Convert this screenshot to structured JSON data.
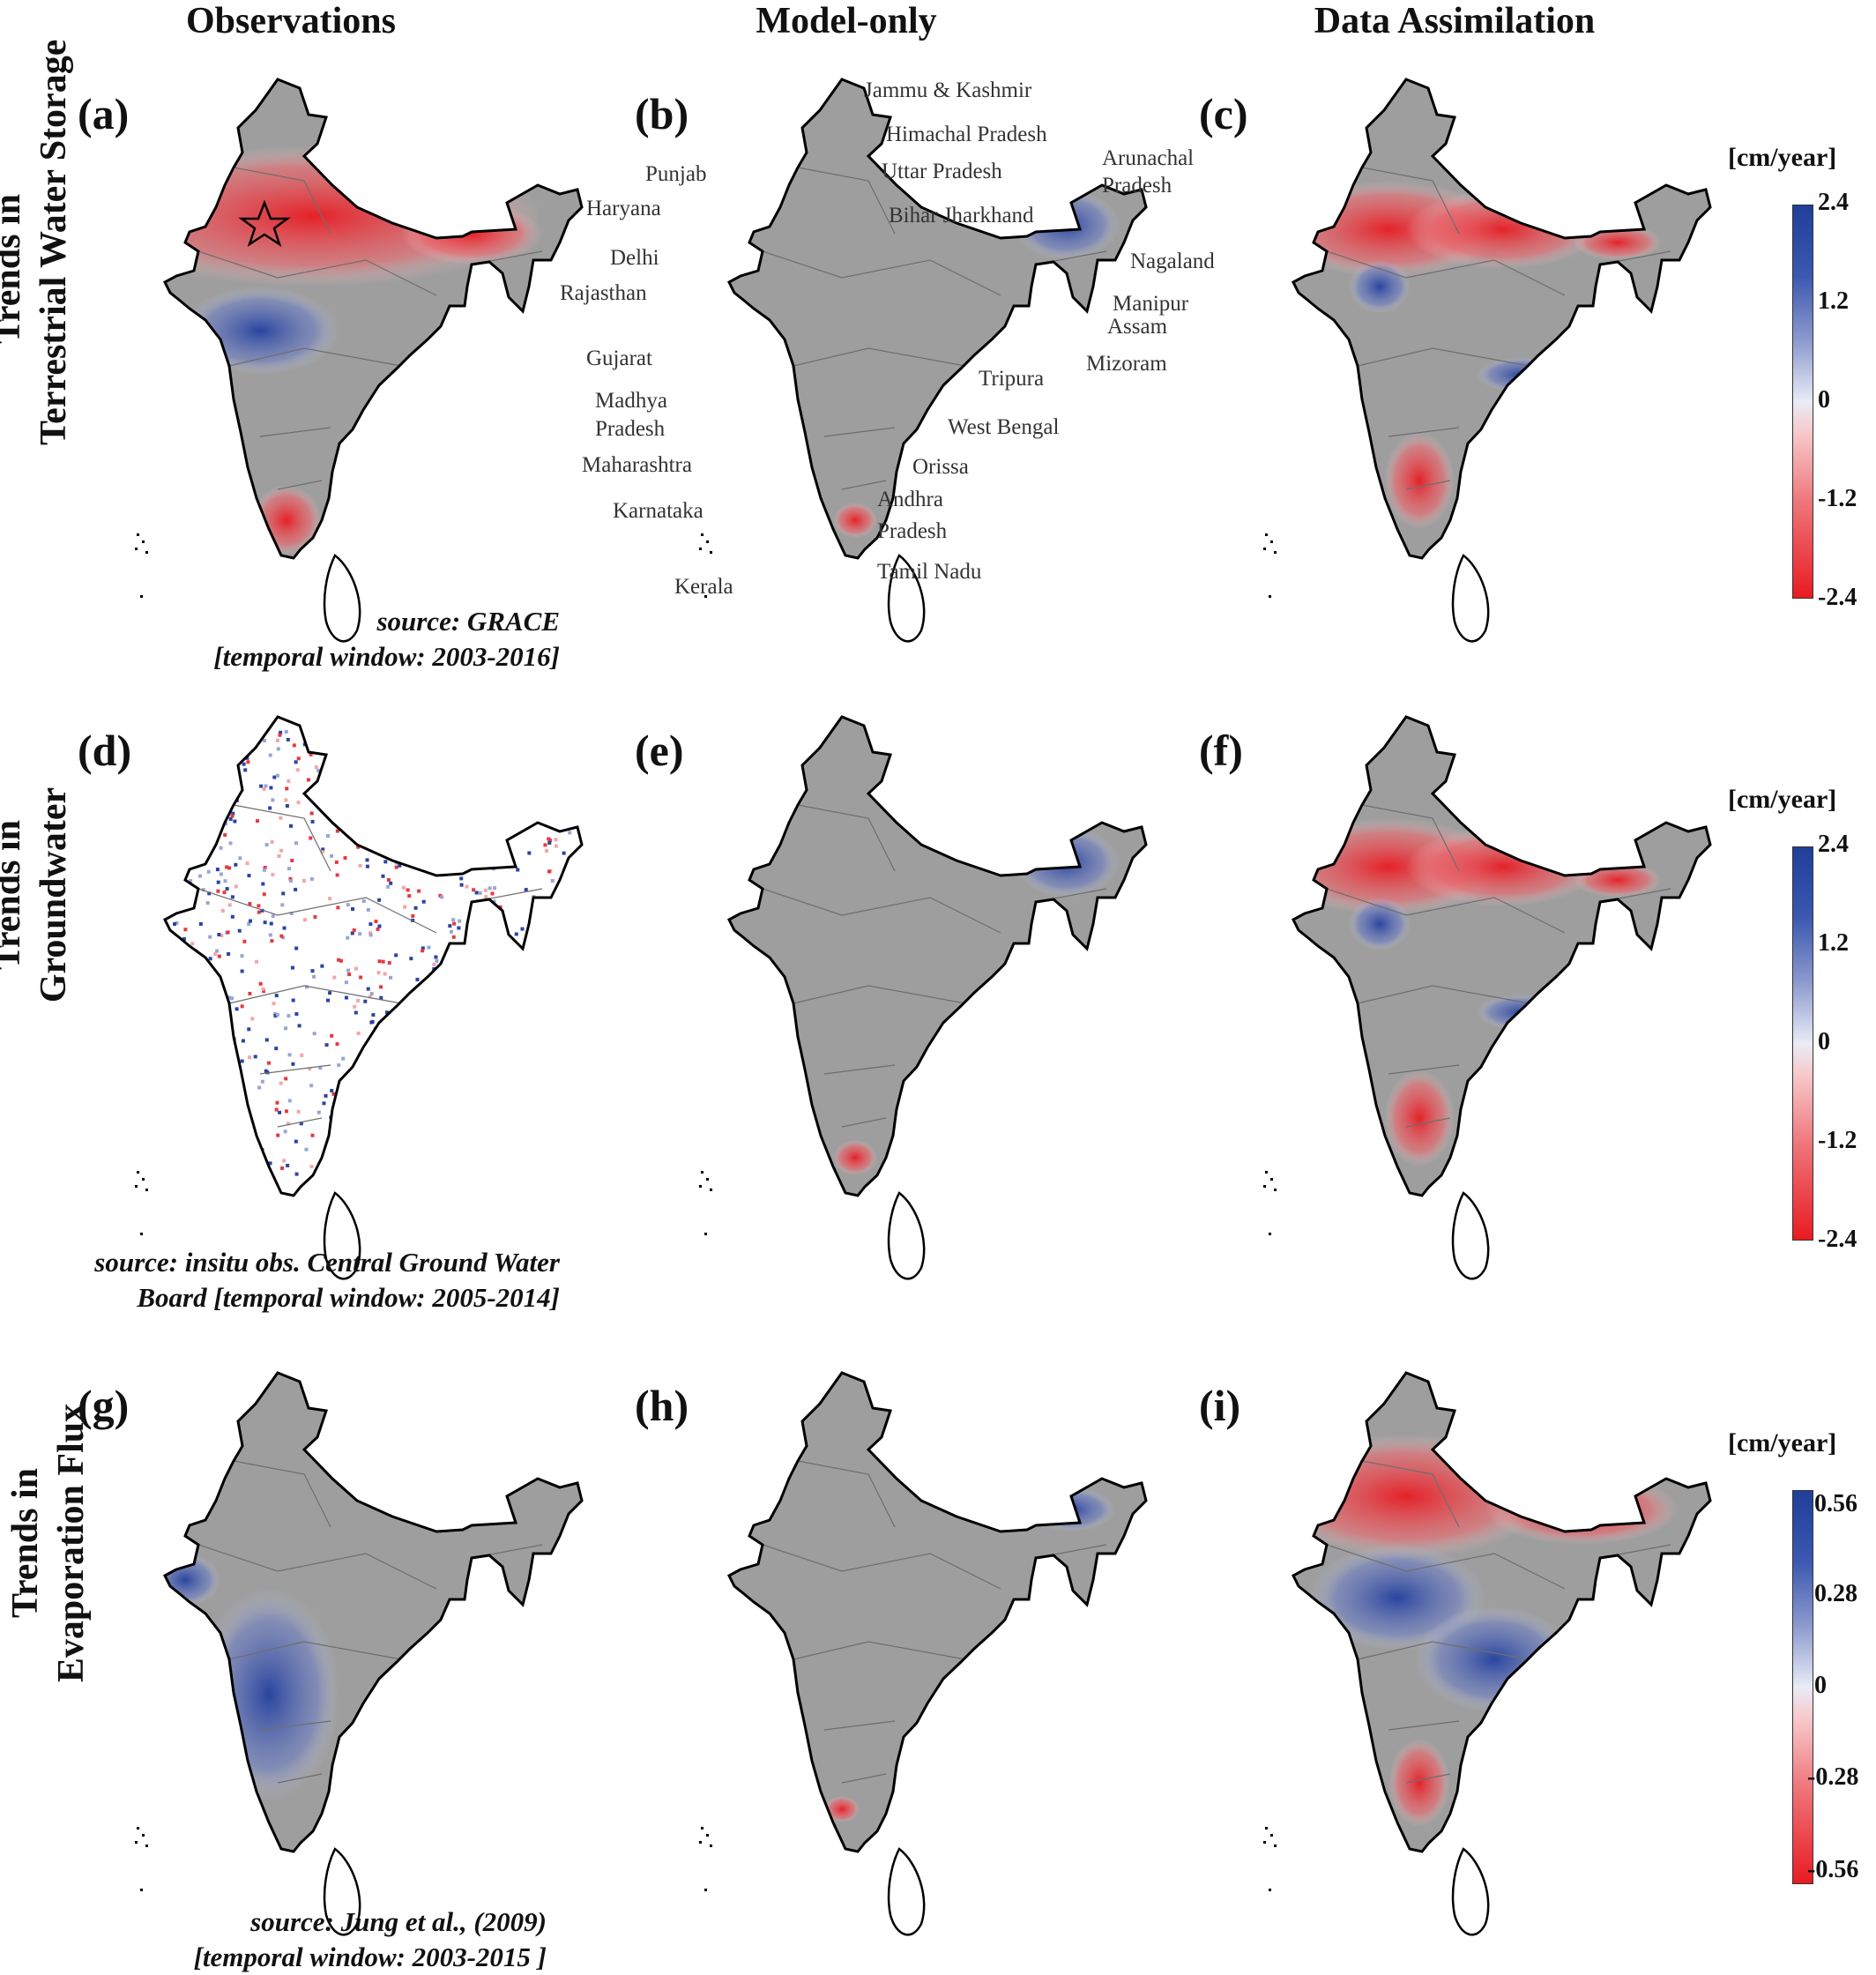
{
  "columns": [
    "Observations",
    "Model-only",
    "Data Assimilation"
  ],
  "rows": [
    {
      "title_lines": [
        "Trends in",
        "Terrestrial Water Storage"
      ]
    },
    {
      "title_lines": [
        "Trends in",
        "Groundwater"
      ]
    },
    {
      "title_lines": [
        "Trends in",
        "Evaporation Flux"
      ]
    }
  ],
  "panels": [
    {
      "letter": "(a)",
      "fill": "obs_tws",
      "star": true
    },
    {
      "letter": "(b)",
      "fill": "model_tws",
      "labels": true
    },
    {
      "letter": "(c)",
      "fill": "da_tws"
    },
    {
      "letter": "(d)",
      "fill": "obs_gw"
    },
    {
      "letter": "(e)",
      "fill": "model_gw"
    },
    {
      "letter": "(f)",
      "fill": "da_gw"
    },
    {
      "letter": "(g)",
      "fill": "obs_ef"
    },
    {
      "letter": "(h)",
      "fill": "model_ef"
    },
    {
      "letter": "(i)",
      "fill": "da_ef"
    }
  ],
  "sources": [
    {
      "lines": [
        "source: GRACE",
        "[temporal window: 2003-2016]"
      ]
    },
    {
      "lines": [
        "source: insitu obs. Central Ground Water",
        "Board [temporal window: 2005-2014]"
      ]
    },
    {
      "lines": [
        "source: Jung et al., (2009)",
        "[temporal window: 2003-2015  ]"
      ]
    }
  ],
  "colorbars": [
    {
      "unit": "[cm/year]",
      "ticks": [
        "2.4",
        "1.2",
        "0",
        "-1.2",
        "-2.4"
      ]
    },
    {
      "unit": "[cm/year]",
      "ticks": [
        "2.4",
        "1.2",
        "0",
        "-1.2",
        "-2.4"
      ]
    },
    {
      "unit": "[cm/year]",
      "ticks": [
        "0.56",
        "0.28",
        "0",
        "-0.28",
        "-0.56"
      ]
    }
  ],
  "state_labels": [
    "Jammu & Kashmir",
    "Himachal Pradesh",
    "Punjab",
    "Uttar Pradesh",
    "Haryana",
    "Bihar Jharkhand",
    "Arunachal",
    "Pradesh",
    "Delhi",
    "Nagaland",
    "Rajasthan",
    "Manipur",
    "Assam",
    "Gujarat",
    "Mizoram",
    "Tripura",
    "Madhya",
    "Pradesh",
    "West Bengal",
    "Maharashtra",
    "Orissa",
    "Karnataka",
    "Andhra",
    "Pradesh",
    "Kerala",
    "Tamil Nadu"
  ],
  "colors": {
    "land": "#9e9e9e",
    "border": "#000000",
    "blue": "#2440a0",
    "red": "#e8202a"
  }
}
